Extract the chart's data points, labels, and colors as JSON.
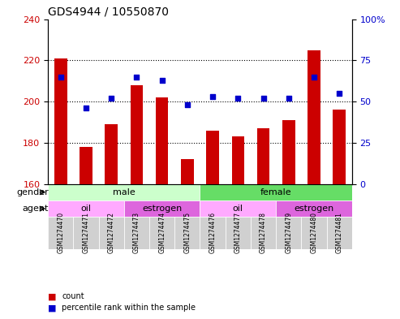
{
  "title": "GDS4944 / 10550870",
  "samples": [
    "GSM1274470",
    "GSM1274471",
    "GSM1274472",
    "GSM1274473",
    "GSM1274474",
    "GSM1274475",
    "GSM1274476",
    "GSM1274477",
    "GSM1274478",
    "GSM1274479",
    "GSM1274480",
    "GSM1274481"
  ],
  "counts": [
    221,
    178,
    189,
    208,
    202,
    172,
    186,
    183,
    187,
    191,
    225,
    196
  ],
  "percentile_ranks": [
    65,
    46,
    52,
    65,
    63,
    48,
    53,
    52,
    52,
    52,
    65,
    55
  ],
  "ylim_left": [
    160,
    240
  ],
  "ylim_right": [
    0,
    100
  ],
  "yticks_left": [
    160,
    180,
    200,
    220,
    240
  ],
  "yticks_right": [
    0,
    25,
    50,
    75,
    100
  ],
  "bar_color": "#cc0000",
  "dot_color": "#0000cc",
  "gender_groups": [
    {
      "label": "male",
      "start": 0,
      "end": 6,
      "color": "#ccffcc"
    },
    {
      "label": "female",
      "start": 6,
      "end": 12,
      "color": "#66dd66"
    }
  ],
  "agent_groups": [
    {
      "label": "oil",
      "start": 0,
      "end": 3,
      "color": "#ffaaff"
    },
    {
      "label": "estrogen",
      "start": 3,
      "end": 6,
      "color": "#dd66dd"
    },
    {
      "label": "oil",
      "start": 6,
      "end": 9,
      "color": "#ffaaff"
    },
    {
      "label": "estrogen",
      "start": 9,
      "end": 12,
      "color": "#dd66dd"
    }
  ],
  "legend_items": [
    {
      "label": "count",
      "color": "#cc0000",
      "marker": "s"
    },
    {
      "label": "percentile rank within the sample",
      "color": "#0000cc",
      "marker": "s"
    }
  ],
  "xlabel_color": "#000000",
  "left_axis_color": "#cc0000",
  "right_axis_color": "#0000cc",
  "grid_color": "#000000",
  "background_color": "#ffffff",
  "plot_bg_color": "#ffffff"
}
